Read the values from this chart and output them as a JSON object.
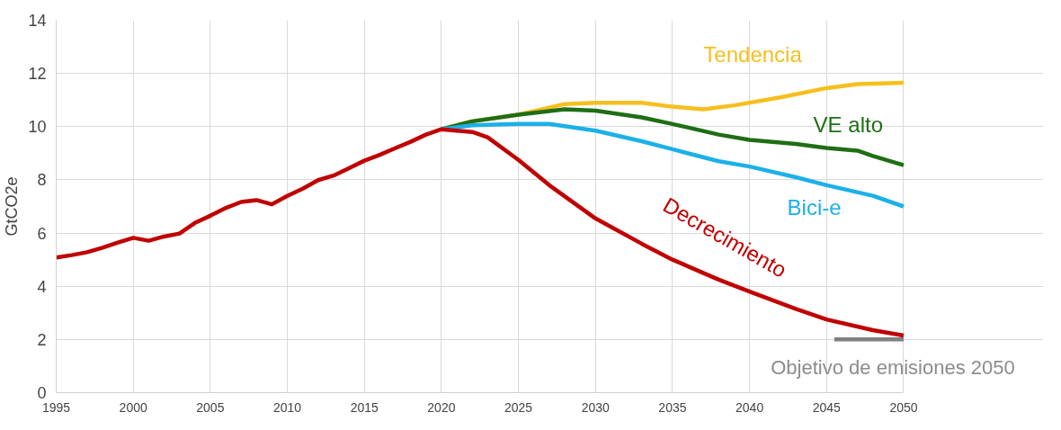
{
  "chart_data": {
    "type": "line",
    "ylabel": "GtCO2e",
    "xlim": [
      1995,
      2050
    ],
    "ylim": [
      0,
      14
    ],
    "xticks": [
      1995,
      2000,
      2005,
      2010,
      2015,
      2020,
      2025,
      2030,
      2035,
      2040,
      2045,
      2050
    ],
    "yticks": [
      0,
      2,
      4,
      6,
      8,
      10,
      12,
      14
    ],
    "grid": true,
    "marker": "none",
    "line_style": "solid",
    "series": [
      {
        "name": "Tendencia",
        "color": "#f5bf1e",
        "x": [
          2020,
          2022,
          2025,
          2028,
          2030,
          2033,
          2035,
          2037,
          2039,
          2042,
          2045,
          2047,
          2050
        ],
        "values": [
          9.9,
          10.2,
          10.45,
          10.85,
          10.9,
          10.9,
          10.75,
          10.65,
          10.8,
          11.1,
          11.45,
          11.6,
          11.65
        ]
      },
      {
        "name": "VE alto",
        "color": "#1f6e14",
        "x": [
          2020,
          2022,
          2025,
          2028,
          2030,
          2033,
          2035,
          2038,
          2040,
          2043,
          2045,
          2047,
          2048,
          2050
        ],
        "values": [
          9.9,
          10.2,
          10.45,
          10.65,
          10.6,
          10.35,
          10.1,
          9.7,
          9.5,
          9.35,
          9.2,
          9.1,
          8.9,
          8.55
        ]
      },
      {
        "name": "Bici-e",
        "color": "#1cb0e8",
        "x": [
          2020,
          2022,
          2025,
          2027,
          2030,
          2033,
          2035,
          2038,
          2040,
          2043,
          2045,
          2048,
          2050
        ],
        "values": [
          9.9,
          10.05,
          10.1,
          10.1,
          9.85,
          9.45,
          9.15,
          8.7,
          8.5,
          8.1,
          7.8,
          7.4,
          7.0
        ]
      },
      {
        "name": "Decrecimiento",
        "color": "#c00000",
        "x": [
          1995,
          1996,
          1997,
          1998,
          1999,
          2000,
          2001,
          2002,
          2003,
          2004,
          2005,
          2006,
          2007,
          2008,
          2009,
          2010,
          2011,
          2012,
          2013,
          2014,
          2015,
          2016,
          2017,
          2018,
          2019,
          2020,
          2022,
          2023,
          2025,
          2027,
          2030,
          2033,
          2035,
          2038,
          2040,
          2043,
          2045,
          2048,
          2050
        ],
        "values": [
          5.08,
          5.17,
          5.28,
          5.45,
          5.64,
          5.82,
          5.71,
          5.87,
          5.98,
          6.38,
          6.65,
          6.94,
          7.17,
          7.24,
          7.08,
          7.4,
          7.67,
          7.99,
          8.16,
          8.44,
          8.72,
          8.94,
          9.19,
          9.43,
          9.7,
          9.9,
          9.8,
          9.6,
          8.75,
          7.8,
          6.55,
          5.6,
          5.0,
          4.25,
          3.8,
          3.15,
          2.75,
          2.35,
          2.15
        ]
      },
      {
        "name": "Objetivo de emisiones 2050",
        "color": "#808080",
        "x": [
          2045.5,
          2050
        ],
        "values": [
          2.0,
          2.0
        ]
      }
    ]
  }
}
